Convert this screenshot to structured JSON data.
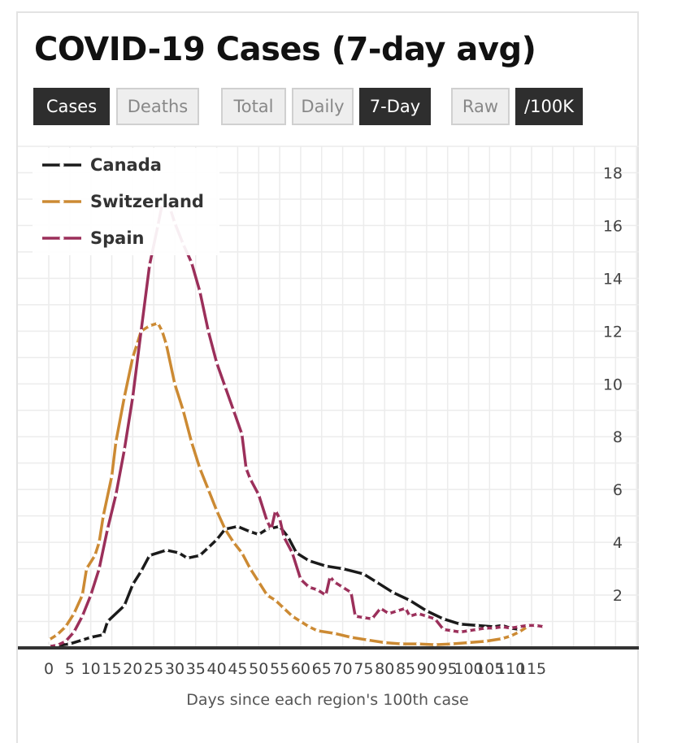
{
  "title": "COVID-19 Cases (7-day avg)",
  "toggles": {
    "metric": [
      {
        "label": "Cases",
        "active": true
      },
      {
        "label": "Deaths",
        "active": false
      }
    ],
    "mode": [
      {
        "label": "Total",
        "active": false
      },
      {
        "label": "Daily",
        "active": false
      },
      {
        "label": "7-Day",
        "active": true
      }
    ],
    "scale": [
      {
        "label": "Raw",
        "active": false
      },
      {
        "label": "/100K",
        "active": true
      }
    ]
  },
  "chart_data": {
    "type": "line",
    "xlabel": "Days since each region's 100th case",
    "ylabel": "",
    "xlim": [
      0,
      115
    ],
    "ylim": [
      0,
      19
    ],
    "x_ticks": [
      0,
      5,
      10,
      15,
      20,
      25,
      30,
      35,
      40,
      45,
      50,
      55,
      60,
      65,
      70,
      75,
      80,
      85,
      90,
      95,
      100,
      105,
      110,
      115
    ],
    "y_ticks": [
      2,
      4,
      6,
      8,
      10,
      12,
      14,
      16,
      18
    ],
    "grid": true,
    "legend_position": "top-left",
    "series": [
      {
        "name": "Canada",
        "color": "#1a1a1a",
        "points": [
          [
            0,
            0.05
          ],
          [
            5,
            0.15
          ],
          [
            8,
            0.3
          ],
          [
            10,
            0.4
          ],
          [
            13,
            0.5
          ],
          [
            14,
            1.0
          ],
          [
            18,
            1.6
          ],
          [
            20,
            2.4
          ],
          [
            22,
            2.9
          ],
          [
            24,
            3.5
          ],
          [
            28,
            3.7
          ],
          [
            31,
            3.6
          ],
          [
            33,
            3.4
          ],
          [
            36,
            3.5
          ],
          [
            38,
            3.8
          ],
          [
            40,
            4.1
          ],
          [
            42,
            4.5
          ],
          [
            45,
            4.6
          ],
          [
            48,
            4.4
          ],
          [
            50,
            4.3
          ],
          [
            52,
            4.5
          ],
          [
            55,
            4.6
          ],
          [
            57,
            4.2
          ],
          [
            59,
            3.6
          ],
          [
            62,
            3.3
          ],
          [
            66,
            3.1
          ],
          [
            70,
            3.0
          ],
          [
            75,
            2.8
          ],
          [
            78,
            2.5
          ],
          [
            82,
            2.1
          ],
          [
            86,
            1.8
          ],
          [
            90,
            1.4
          ],
          [
            94,
            1.1
          ],
          [
            98,
            0.9
          ],
          [
            102,
            0.85
          ],
          [
            106,
            0.8
          ],
          [
            108,
            0.85
          ],
          [
            110,
            0.75
          ],
          [
            112,
            0.7
          ]
        ]
      },
      {
        "name": "Switzerland",
        "color": "#cc8a33",
        "points": [
          [
            0,
            0.3
          ],
          [
            2,
            0.5
          ],
          [
            4,
            0.8
          ],
          [
            6,
            1.3
          ],
          [
            8,
            2.0
          ],
          [
            9,
            3.0
          ],
          [
            11,
            3.5
          ],
          [
            12,
            4.0
          ],
          [
            13,
            5.0
          ],
          [
            15,
            6.5
          ],
          [
            16,
            7.8
          ],
          [
            18,
            9.5
          ],
          [
            20,
            11.0
          ],
          [
            21,
            11.5
          ],
          [
            22,
            12.0
          ],
          [
            24,
            12.2
          ],
          [
            26,
            12.3
          ],
          [
            27,
            12.0
          ],
          [
            28,
            11.5
          ],
          [
            30,
            10.0
          ],
          [
            32,
            9.0
          ],
          [
            34,
            7.8
          ],
          [
            36,
            6.8
          ],
          [
            38,
            6.0
          ],
          [
            40,
            5.2
          ],
          [
            42,
            4.5
          ],
          [
            44,
            4.0
          ],
          [
            46,
            3.6
          ],
          [
            48,
            3.0
          ],
          [
            50,
            2.5
          ],
          [
            52,
            2.0
          ],
          [
            54,
            1.8
          ],
          [
            56,
            1.5
          ],
          [
            58,
            1.2
          ],
          [
            60,
            1.0
          ],
          [
            62,
            0.8
          ],
          [
            64,
            0.65
          ],
          [
            68,
            0.55
          ],
          [
            72,
            0.4
          ],
          [
            76,
            0.3
          ],
          [
            80,
            0.2
          ],
          [
            84,
            0.15
          ],
          [
            88,
            0.15
          ],
          [
            92,
            0.12
          ],
          [
            96,
            0.15
          ],
          [
            100,
            0.2
          ],
          [
            104,
            0.25
          ],
          [
            108,
            0.35
          ],
          [
            110,
            0.45
          ],
          [
            112,
            0.6
          ],
          [
            114,
            0.8
          ]
        ]
      },
      {
        "name": "Spain",
        "color": "#9b2f5a",
        "points": [
          [
            0,
            0.05
          ],
          [
            2,
            0.1
          ],
          [
            4,
            0.25
          ],
          [
            6,
            0.6
          ],
          [
            8,
            1.2
          ],
          [
            10,
            2.0
          ],
          [
            12,
            3.0
          ],
          [
            14,
            4.5
          ],
          [
            16,
            5.8
          ],
          [
            18,
            7.5
          ],
          [
            20,
            9.5
          ],
          [
            22,
            12.0
          ],
          [
            24,
            14.5
          ],
          [
            26,
            16.0
          ],
          [
            27,
            16.8
          ],
          [
            28,
            16.9
          ],
          [
            29,
            16.6
          ],
          [
            30,
            16.1
          ],
          [
            32,
            15.3
          ],
          [
            34,
            14.6
          ],
          [
            36,
            13.5
          ],
          [
            38,
            12.0
          ],
          [
            40,
            10.8
          ],
          [
            42,
            9.9
          ],
          [
            44,
            9.0
          ],
          [
            46,
            8.1
          ],
          [
            47,
            6.8
          ],
          [
            48,
            6.4
          ],
          [
            50,
            5.8
          ],
          [
            52,
            4.8
          ],
          [
            53,
            4.5
          ],
          [
            54,
            5.2
          ],
          [
            55,
            4.9
          ],
          [
            56,
            4.2
          ],
          [
            58,
            3.6
          ],
          [
            60,
            2.6
          ],
          [
            62,
            2.3
          ],
          [
            64,
            2.2
          ],
          [
            66,
            2.0
          ],
          [
            67,
            2.7
          ],
          [
            68,
            2.5
          ],
          [
            70,
            2.3
          ],
          [
            72,
            2.1
          ],
          [
            73,
            1.2
          ],
          [
            75,
            1.15
          ],
          [
            77,
            1.1
          ],
          [
            79,
            1.5
          ],
          [
            81,
            1.3
          ],
          [
            83,
            1.4
          ],
          [
            85,
            1.5
          ],
          [
            86,
            1.2
          ],
          [
            88,
            1.3
          ],
          [
            90,
            1.2
          ],
          [
            92,
            1.1
          ],
          [
            94,
            0.7
          ],
          [
            96,
            0.65
          ],
          [
            98,
            0.6
          ],
          [
            100,
            0.65
          ],
          [
            102,
            0.7
          ],
          [
            104,
            0.75
          ],
          [
            106,
            0.75
          ],
          [
            108,
            0.8
          ],
          [
            110,
            0.75
          ],
          [
            112,
            0.8
          ],
          [
            114,
            0.85
          ],
          [
            116,
            0.85
          ],
          [
            118,
            0.8
          ]
        ]
      }
    ]
  }
}
